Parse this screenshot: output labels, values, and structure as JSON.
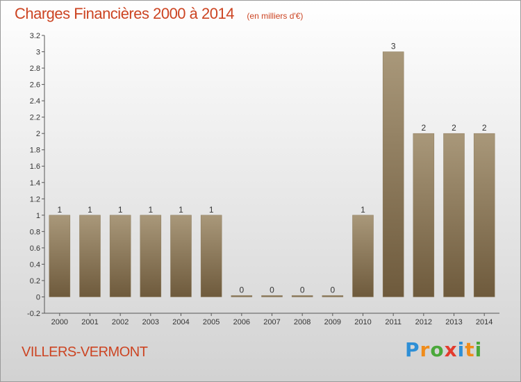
{
  "header": {
    "title": "Charges Financières 2000 à 2014",
    "subtitle": "(en milliers d'€)"
  },
  "location": "VILLERS-VERMONT",
  "brand": {
    "letters": [
      "P",
      "r",
      "o",
      "x",
      "i",
      "t",
      "i"
    ],
    "colors": [
      "#2e8fd6",
      "#f08c1a",
      "#4aa83a",
      "#e33b2d",
      "#2e8fd6",
      "#f08c1a",
      "#4aa83a"
    ]
  },
  "colors": {
    "bar_light": "#a9987a",
    "bar_dark": "#6e5a3c",
    "text": "#cc4422"
  },
  "chart_data": {
    "type": "bar",
    "categories": [
      "2000",
      "2001",
      "2002",
      "2003",
      "2004",
      "2005",
      "2006",
      "2007",
      "2008",
      "2009",
      "2010",
      "2011",
      "2012",
      "2013",
      "2014"
    ],
    "values": [
      1,
      1,
      1,
      1,
      1,
      1,
      0,
      0,
      0,
      0,
      1,
      3,
      2,
      2,
      2
    ],
    "data_labels": [
      "1",
      "1",
      "1",
      "1",
      "1",
      "1",
      "0",
      "0",
      "0",
      "0",
      "1",
      "3",
      "2",
      "2",
      "2"
    ],
    "yticks": [
      "-0.2",
      "0",
      "0.2",
      "0.4",
      "0.6",
      "0.8",
      "1",
      "1.2",
      "1.4",
      "1.6",
      "1.8",
      "2",
      "2.2",
      "2.4",
      "2.6",
      "2.8",
      "3",
      "3.2"
    ],
    "ylim": [
      -0.2,
      3.2
    ],
    "grid": false,
    "legend": "none"
  }
}
